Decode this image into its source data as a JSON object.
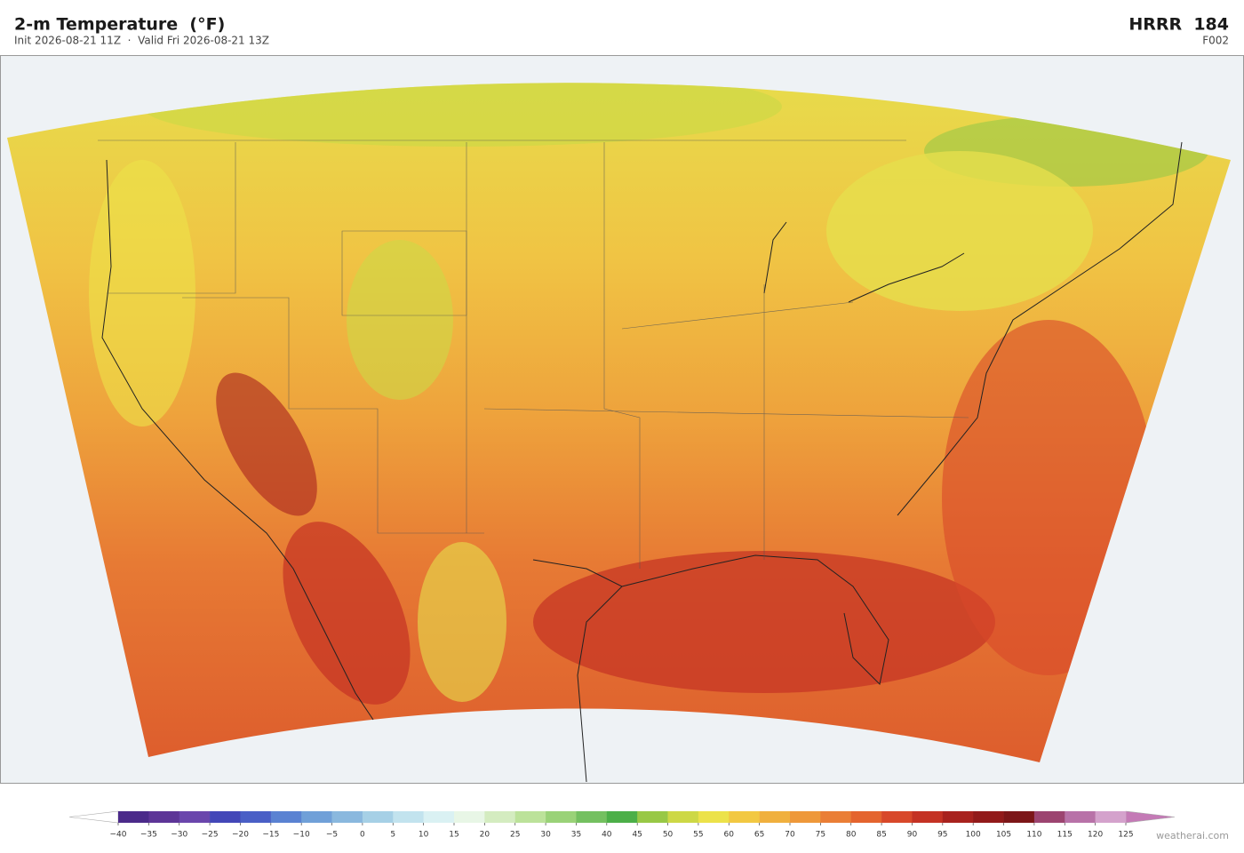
{
  "header": {
    "title": "2-m Temperature  (°F)",
    "subtitle": "Init 2026-08-21 11Z  ·  Valid Fri 2026-08-21 13Z",
    "model": "HRRR  184",
    "forecast_hour": "F002"
  },
  "colorbar": {
    "ticks": [
      {
        "value": -40,
        "label": "−40"
      },
      {
        "value": -35,
        "label": "−35"
      },
      {
        "value": -30,
        "label": "−30"
      },
      {
        "value": -25,
        "label": "−25"
      },
      {
        "value": -20,
        "label": "−20"
      },
      {
        "value": -15,
        "label": "−15"
      },
      {
        "value": -10,
        "label": "−10"
      },
      {
        "value": -5,
        "label": "−5"
      },
      0,
      5,
      10,
      15,
      20,
      25,
      30,
      35,
      40,
      45,
      50,
      55,
      60,
      65,
      70,
      75,
      80,
      85,
      90,
      95,
      100,
      105,
      110,
      115,
      120,
      125
    ],
    "colors": [
      "#4b2a8a",
      "#5d3597",
      "#6a46ac",
      "#4347b8",
      "#4a5fc6",
      "#5a82d2",
      "#70a0d8",
      "#8ab8de",
      "#a6d0e6",
      "#c2e3ee",
      "#daf1f3",
      "#e8f6e6",
      "#d4ecc0",
      "#bce29a",
      "#9ad278",
      "#74c060",
      "#4caf48",
      "#98c846",
      "#cdd846",
      "#ece24a",
      "#f2c842",
      "#f0b03e",
      "#ee983a",
      "#ea7e36",
      "#e4642e",
      "#d8482a",
      "#c43224",
      "#a8221e",
      "#921a1a",
      "#7c1618",
      "#9c4470",
      "#b872a8",
      "#d4a2cc"
    ],
    "extend_low_color": "#ffffff",
    "extend_high_color": "#c47ab6"
  },
  "footer": {
    "watermark": "weatherai.com"
  }
}
